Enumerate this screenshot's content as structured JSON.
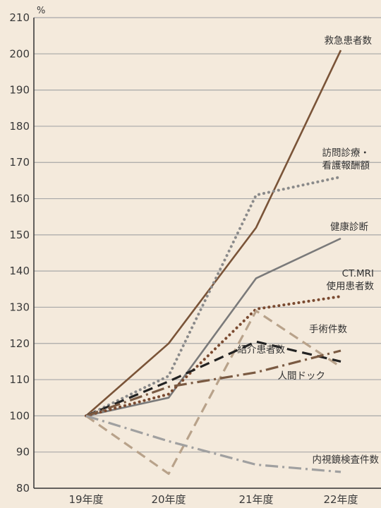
{
  "chart_data": {
    "type": "line",
    "title": "",
    "xlabel": "",
    "ylabel": "",
    "unit": "%",
    "categories": [
      "19年度",
      "20年度",
      "21年度",
      "22年度"
    ],
    "ylim": [
      80,
      210
    ],
    "yticks": [
      80,
      90,
      100,
      110,
      120,
      130,
      140,
      150,
      160,
      170,
      180,
      190,
      200,
      210
    ],
    "grid": true,
    "legend": "inline labels near line ends",
    "background_color": "#f4eadc",
    "gridline_color": "#a8a8a8",
    "series": [
      {
        "name": "救急患者数",
        "label_lines": [
          "救急患者数"
        ],
        "style": "solid",
        "color": "#7a5438",
        "values": [
          100,
          120,
          152,
          201
        ]
      },
      {
        "name": "訪問診療・看護報酬額",
        "label_lines": [
          "訪問診療・",
          "看護報酬額"
        ],
        "style": "dotted",
        "color": "#8a8a8a",
        "values": [
          100,
          111,
          161,
          166
        ]
      },
      {
        "name": "健康診断",
        "label_lines": [
          "健康診断"
        ],
        "style": "solid",
        "color": "#7a7a7a",
        "values": [
          100,
          105,
          138,
          149
        ]
      },
      {
        "name": "CT.MRI使用患者数",
        "label_lines": [
          "CT.MRI",
          "使用患者数"
        ],
        "style": "dotted",
        "color": "#7a4a30",
        "values": [
          100,
          106,
          129.5,
          133
        ]
      },
      {
        "name": "手術件数",
        "label_lines": [
          "手術件数"
        ],
        "style": "dashed",
        "color": "#b8a28a",
        "values": [
          100,
          84,
          129,
          113.5
        ]
      },
      {
        "name": "紹介患者数",
        "label_lines": [
          "紹介患者数"
        ],
        "style": "dashed",
        "color": "#222222",
        "values": [
          100,
          109.5,
          120.5,
          115
        ]
      },
      {
        "name": "人間ドック",
        "label_lines": [
          "人間ドック"
        ],
        "style": "dashdot",
        "color": "#7a5a42",
        "values": [
          100,
          108,
          112,
          118
        ]
      },
      {
        "name": "内視鏡検査件数",
        "label_lines": [
          "内視鏡検査件数"
        ],
        "style": "dashdot",
        "color": "#a0a0a0",
        "values": [
          100,
          93,
          86.5,
          84.5
        ]
      }
    ]
  }
}
